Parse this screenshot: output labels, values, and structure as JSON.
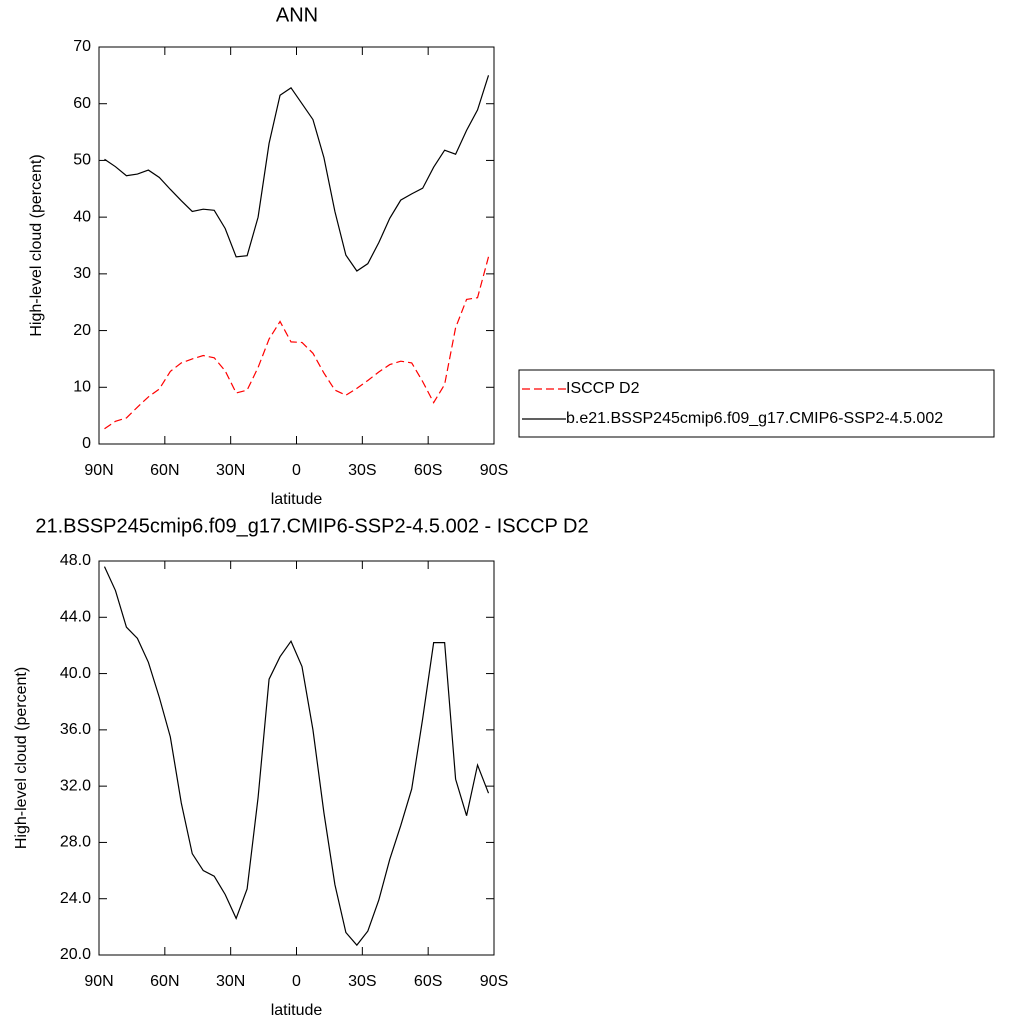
{
  "chart_data": [
    {
      "type": "line",
      "title": "ANN",
      "xlabel": "latitude",
      "ylabel": "High-level cloud (percent)",
      "x": [
        87.5,
        82.5,
        77.5,
        72.5,
        67.5,
        62.5,
        57.5,
        52.5,
        47.5,
        42.5,
        37.5,
        32.5,
        27.5,
        22.5,
        17.5,
        12.5,
        7.5,
        2.5,
        -2.5,
        -7.5,
        -12.5,
        -17.5,
        -22.5,
        -27.5,
        -32.5,
        -37.5,
        -42.5,
        -47.5,
        -52.5,
        -57.5,
        -62.5,
        -67.5,
        -72.5,
        -77.5,
        -82.5,
        -87.5
      ],
      "xlim": [
        90,
        -90
      ],
      "xticks": [
        {
          "value": 90,
          "label": "90N"
        },
        {
          "value": 60,
          "label": "60N"
        },
        {
          "value": 30,
          "label": "30N"
        },
        0,
        {
          "value": -30,
          "label": "30S"
        },
        {
          "value": -60,
          "label": "60S"
        },
        {
          "value": -90,
          "label": "90S"
        }
      ],
      "ylim": [
        0,
        70
      ],
      "yticks": [
        0,
        10,
        20,
        30,
        40,
        50,
        60,
        70
      ],
      "legend_position": "right",
      "series": [
        {
          "name": "ISCCP D2",
          "color": "#ff0000",
          "line_style": "dashed",
          "values": [
            2.7,
            4.0,
            4.6,
            6.5,
            8.3,
            9.7,
            12.8,
            14.3,
            15.0,
            15.6,
            15.2,
            12.9,
            9.0,
            9.5,
            13.5,
            18.5,
            21.6,
            18.0,
            17.9,
            16.0,
            12.5,
            9.5,
            8.6,
            9.8,
            11.2,
            12.7,
            14.0,
            14.6,
            14.3,
            11.0,
            7.3,
            10.5,
            20.5,
            25.5,
            25.8,
            33.0
          ]
        },
        {
          "name": "b.e21.BSSP245cmip6.f09_g17.CMIP6-SSP2-4.5.002",
          "color": "#000000",
          "line_style": "solid",
          "values": [
            50.2,
            48.9,
            47.3,
            47.6,
            48.3,
            47.0,
            44.9,
            42.9,
            41.0,
            41.4,
            41.2,
            38.0,
            33.0,
            33.2,
            40.0,
            53.0,
            61.5,
            62.8,
            60.0,
            57.2,
            50.5,
            41.0,
            33.3,
            30.5,
            31.8,
            35.5,
            39.8,
            43.0,
            44.1,
            45.1,
            48.8,
            51.8,
            51.1,
            55.3,
            58.9,
            65.0
          ]
        }
      ]
    },
    {
      "type": "line",
      "title": "21.BSSP245cmip6.f09_g17.CMIP6-SSP2-4.5.002 - ISCCP D2",
      "xlabel": "latitude",
      "ylabel": "High-level cloud (percent)",
      "x": [
        87.5,
        82.5,
        77.5,
        72.5,
        67.5,
        62.5,
        57.5,
        52.5,
        47.5,
        42.5,
        37.5,
        32.5,
        27.5,
        22.5,
        17.5,
        12.5,
        7.5,
        2.5,
        -2.5,
        -7.5,
        -12.5,
        -17.5,
        -22.5,
        -27.5,
        -32.5,
        -37.5,
        -42.5,
        -47.5,
        -52.5,
        -57.5,
        -62.5,
        -67.5,
        -72.5,
        -77.5,
        -82.5,
        -87.5
      ],
      "xlim": [
        90,
        -90
      ],
      "xticks": [
        {
          "value": 90,
          "label": "90N"
        },
        {
          "value": 60,
          "label": "60N"
        },
        {
          "value": 30,
          "label": "30N"
        },
        0,
        {
          "value": -30,
          "label": "30S"
        },
        {
          "value": -60,
          "label": "60S"
        },
        {
          "value": -90,
          "label": "90S"
        }
      ],
      "ylim": [
        20,
        48
      ],
      "yticks": [
        {
          "value": 20,
          "label": "20.0"
        },
        {
          "value": 24,
          "label": "24.0"
        },
        {
          "value": 28,
          "label": "28.0"
        },
        {
          "value": 32,
          "label": "32.0"
        },
        {
          "value": 36,
          "label": "36.0"
        },
        {
          "value": 40,
          "label": "40.0"
        },
        {
          "value": 44,
          "label": "44.0"
        },
        {
          "value": 48,
          "label": "48.0"
        }
      ],
      "series": [
        {
          "color": "#000000",
          "line_style": "solid",
          "values": [
            47.6,
            45.9,
            43.3,
            42.5,
            40.8,
            38.3,
            35.5,
            30.8,
            27.2,
            26.0,
            25.6,
            24.3,
            22.6,
            24.7,
            31.2,
            39.6,
            41.2,
            42.3,
            40.5,
            36.0,
            30.1,
            25.0,
            21.6,
            20.7,
            21.7,
            23.9,
            26.8,
            29.2,
            31.8,
            36.8,
            42.2,
            42.2,
            32.5,
            29.9,
            33.5,
            31.5
          ]
        }
      ]
    }
  ]
}
